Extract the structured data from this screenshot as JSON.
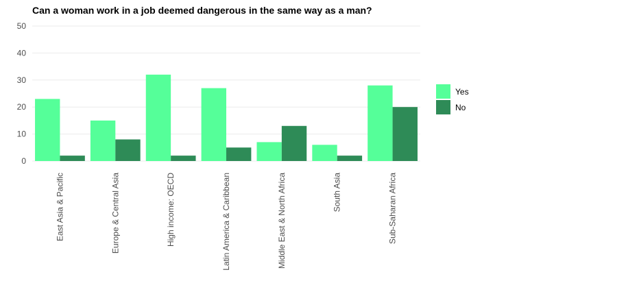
{
  "chart_data": {
    "type": "bar",
    "title": "Can a woman work in a job deemed dangerous in the same way as a man?",
    "xlabel": "",
    "ylabel": "",
    "categories": [
      "East Asia & Pacific",
      "Europe & Central Asia",
      "High income: OECD",
      "Latin America & Caribbean",
      "Middle East & North Africa",
      "South Asia",
      "Sub-Saharan Africa"
    ],
    "series": [
      {
        "name": "Yes",
        "color": "#55FF99",
        "values": [
          23,
          15,
          32,
          27,
          7,
          6,
          28
        ]
      },
      {
        "name": "No",
        "color": "#2E8B57",
        "values": [
          2,
          8,
          2,
          5,
          13,
          2,
          20
        ]
      }
    ],
    "ylim": [
      0,
      50
    ],
    "yticks": [
      0,
      10,
      20,
      30,
      40,
      50
    ],
    "grid": true,
    "gridColor": "#ebebeb",
    "legend": "right"
  }
}
